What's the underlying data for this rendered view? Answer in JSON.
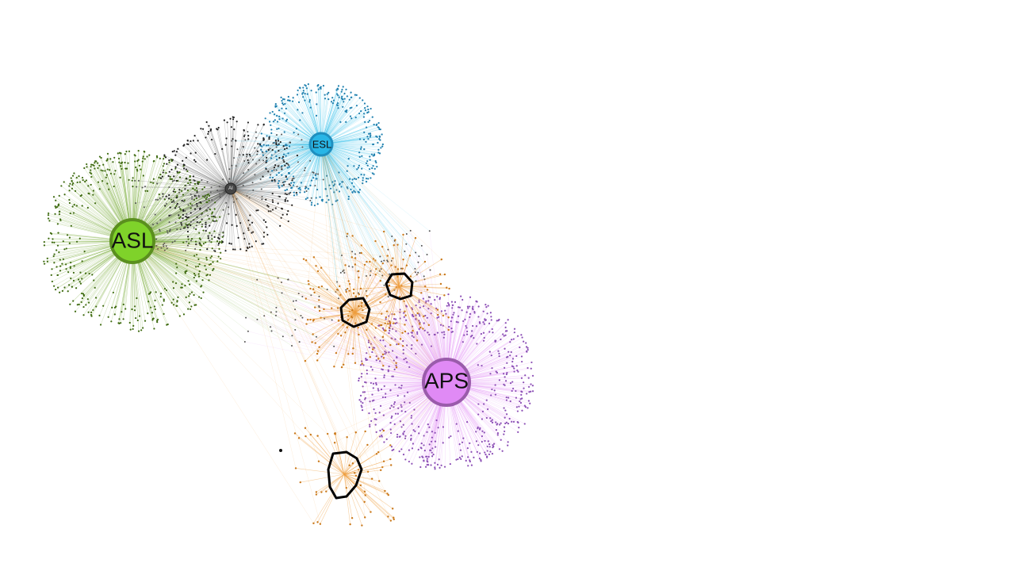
{
  "hubs": [
    {
      "id": "asl",
      "label": "ASL",
      "fill": "#7fd22a",
      "stroke": "#5a8f1e",
      "edge_color": "#6fa52a",
      "node_color": "#3e6a10"
    },
    {
      "id": "esl",
      "label": "ESL",
      "fill": "#29b6e6",
      "stroke": "#1f8fbf",
      "edge_color": "#3cc3ea",
      "node_color": "#1e7fae"
    },
    {
      "id": "aps",
      "label": "APS",
      "fill": "#e08af5",
      "stroke": "#9a5bab",
      "edge_color": "#e69af5",
      "node_color": "#8b4fb5"
    },
    {
      "id": "ai",
      "label": "AI",
      "fill": "#444444",
      "stroke": "#222222",
      "edge_color": "#555555",
      "node_color": "#222222"
    }
  ],
  "bridge_color": "#f0a040",
  "highlight_color": "#000000"
}
